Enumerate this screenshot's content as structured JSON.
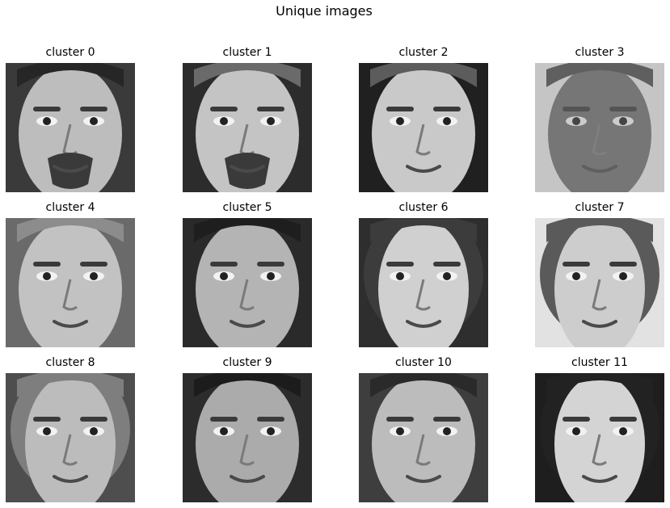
{
  "figure": {
    "title": "Unique images"
  },
  "panels": [
    {
      "title": "cluster 0",
      "face": {
        "bg": "#3a3a3a",
        "skin": "#bdbdbd",
        "hair": "#262626",
        "beard": true,
        "shape": "m"
      }
    },
    {
      "title": "cluster 1",
      "face": {
        "bg": "#2c2c2c",
        "skin": "#c4c4c4",
        "hair": "#6a6a6a",
        "beard": true,
        "shape": "m"
      }
    },
    {
      "title": "cluster 2",
      "face": {
        "bg": "#202020",
        "skin": "#c9c9c9",
        "hair": "#5c5c5c",
        "beard": false,
        "shape": "m"
      }
    },
    {
      "title": "cluster 3",
      "face": {
        "bg": "#e6e6e6",
        "skin": "#6e6e6e",
        "hair": "#4a4a4a",
        "beard": false,
        "shape": "blur"
      }
    },
    {
      "title": "cluster 4",
      "face": {
        "bg": "#6a6a6a",
        "skin": "#c2c2c2",
        "hair": "#8c8c8c",
        "beard": false,
        "shape": "m"
      }
    },
    {
      "title": "cluster 5",
      "face": {
        "bg": "#2a2a2a",
        "skin": "#b4b4b4",
        "hair": "#1e1e1e",
        "beard": false,
        "shape": "m"
      }
    },
    {
      "title": "cluster 6",
      "face": {
        "bg": "#2e2e2e",
        "skin": "#d0d0d0",
        "hair": "#3c3c3c",
        "beard": false,
        "shape": "f"
      }
    },
    {
      "title": "cluster 7",
      "face": {
        "bg": "#e2e2e2",
        "skin": "#cdcdcd",
        "hair": "#5a5a5a",
        "beard": false,
        "shape": "f"
      }
    },
    {
      "title": "cluster 8",
      "face": {
        "bg": "#4e4e4e",
        "skin": "#bcbcbc",
        "hair": "#7e7e7e",
        "beard": false,
        "shape": "f"
      }
    },
    {
      "title": "cluster 9",
      "face": {
        "bg": "#2c2c2c",
        "skin": "#ababab",
        "hair": "#1c1c1c",
        "beard": false,
        "shape": "m"
      }
    },
    {
      "title": "cluster 10",
      "face": {
        "bg": "#3e3e3e",
        "skin": "#bcbcbc",
        "hair": "#2a2a2a",
        "beard": false,
        "shape": "m"
      }
    },
    {
      "title": "cluster 11",
      "face": {
        "bg": "#1e1e1e",
        "skin": "#d4d4d4",
        "hair": "#222222",
        "beard": false,
        "shape": "f"
      }
    }
  ]
}
